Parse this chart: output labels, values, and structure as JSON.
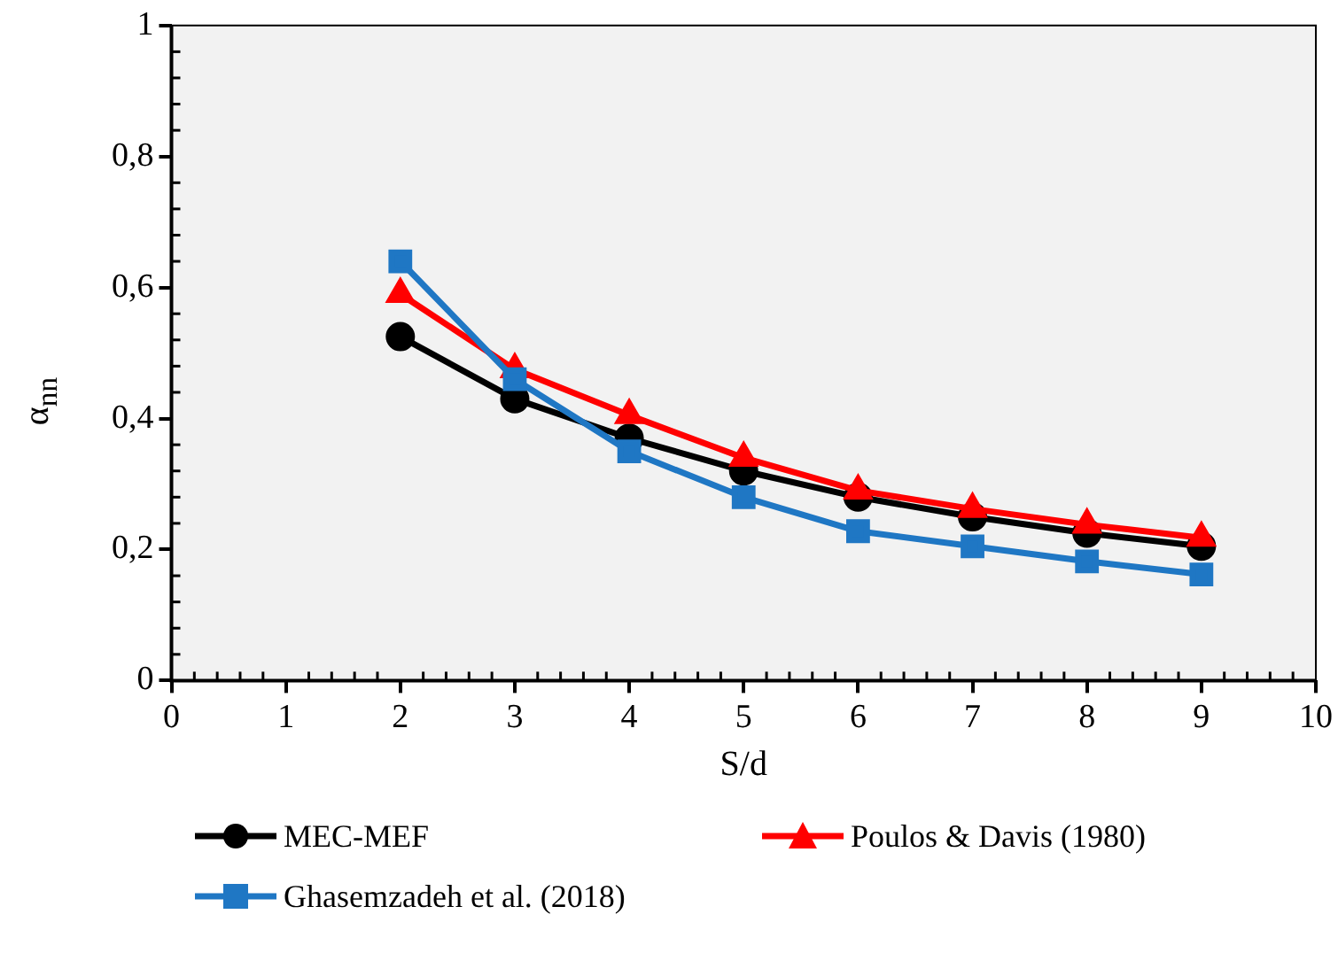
{
  "chart_data": {
    "type": "line",
    "xlabel": "S/d",
    "ylabel": "α$_{nn}$",
    "x": [
      2,
      3,
      4,
      5,
      6,
      7,
      8,
      9
    ],
    "xlim": [
      0,
      10
    ],
    "xticks": [
      0,
      1,
      2,
      3,
      4,
      5,
      6,
      7,
      8,
      9,
      10
    ],
    "ylim": [
      0,
      1
    ],
    "yticks": [
      {
        "value": 0,
        "label": "0"
      },
      {
        "value": 0.2,
        "label": "0,2"
      },
      {
        "value": 0.4,
        "label": "0,4"
      },
      {
        "value": 0.6,
        "label": "0,6"
      },
      {
        "value": 0.8,
        "label": "0,8"
      },
      {
        "value": 1,
        "label": "1"
      }
    ],
    "grid": false,
    "legend": "bottom",
    "line_style": "solid",
    "series": [
      {
        "name": "MEC-MEF",
        "color": "#000000",
        "marker": "circle",
        "values": [
          0.525,
          0.43,
          0.37,
          0.32,
          0.28,
          0.25,
          0.225,
          0.205
        ]
      },
      {
        "name": "Poulos & Davis (1980)",
        "color": "#ff0000",
        "marker": "triangle",
        "values": [
          0.59,
          0.475,
          0.405,
          0.34,
          0.29,
          0.262,
          0.238,
          0.218
        ]
      },
      {
        "name": "Ghasemzadeh et al. (2018)",
        "color": "#1f77c4",
        "marker": "square",
        "values": [
          0.64,
          0.46,
          0.35,
          0.28,
          0.228,
          0.205,
          0.182,
          0.162
        ]
      }
    ]
  }
}
